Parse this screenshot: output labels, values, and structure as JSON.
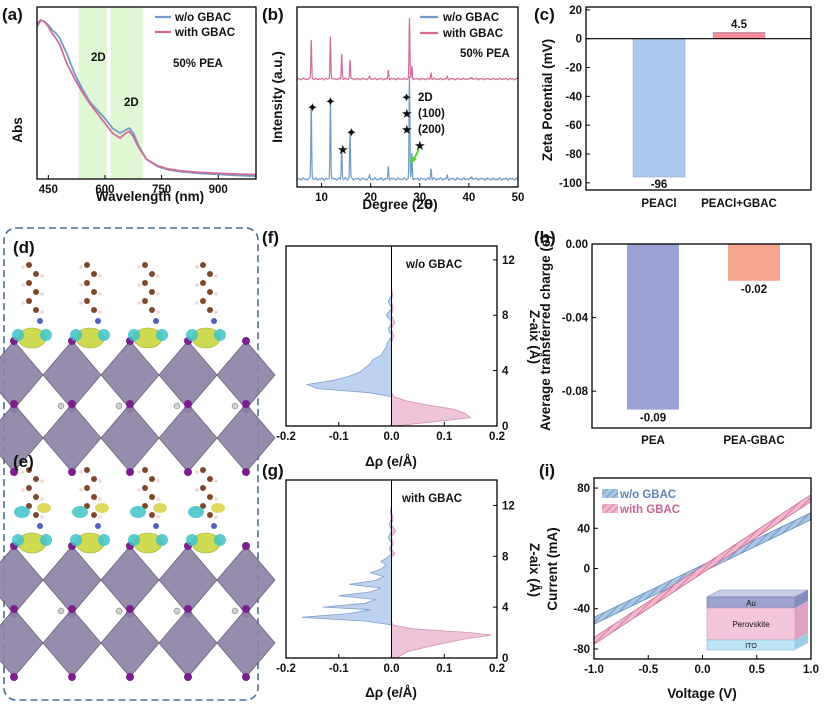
{
  "panels": {
    "a": "(a)",
    "b": "(b)",
    "c": "(c)",
    "d": "(d)",
    "e": "(e)",
    "f": "(f)",
    "g": "(g)",
    "h": "(h)",
    "i": "(i)"
  },
  "colors": {
    "wo": "#6f9cc4",
    "with": "#d36b97",
    "barA": "#adc8ef",
    "barB": "#f38c97",
    "barC": "#9aa2d6",
    "barD": "#f6a591",
    "neg": "#bcd2ef",
    "pos": "#efc3d8",
    "shade": "#dff7d2"
  },
  "chart_data": [
    {
      "id": "a",
      "type": "line",
      "xlabel": "Wavelength (nm)",
      "ylabel": "Abs",
      "xlim": [
        420,
        1000
      ],
      "xticks": [
        450,
        600,
        750,
        900
      ],
      "legend": [
        "w/o GBAC",
        "with GBAC"
      ],
      "legend_position": "top-right",
      "annotations": [
        "2D",
        "2D",
        "50% PEA"
      ],
      "shaded_regions": [
        [
          530,
          605
        ],
        [
          615,
          700
        ]
      ],
      "series": [
        {
          "name": "w/o GBAC",
          "x": [
            420,
            430,
            440,
            450,
            460,
            470,
            480,
            500,
            520,
            540,
            560,
            580,
            600,
            620,
            640,
            655,
            665,
            675,
            690,
            710,
            740,
            770,
            800,
            850,
            900,
            950,
            1000
          ],
          "y": [
            0.95,
            0.97,
            0.96,
            0.94,
            0.91,
            0.89,
            0.86,
            0.76,
            0.64,
            0.55,
            0.47,
            0.42,
            0.37,
            0.31,
            0.28,
            0.3,
            0.31,
            0.28,
            0.2,
            0.12,
            0.075,
            0.055,
            0.045,
            0.035,
            0.028,
            0.022,
            0.018
          ]
        },
        {
          "name": "with GBAC",
          "x": [
            420,
            430,
            440,
            450,
            460,
            470,
            480,
            500,
            520,
            540,
            560,
            580,
            600,
            620,
            640,
            655,
            665,
            675,
            690,
            710,
            740,
            770,
            800,
            850,
            900,
            950,
            1000
          ],
          "y": [
            0.93,
            0.97,
            0.96,
            0.93,
            0.89,
            0.86,
            0.82,
            0.7,
            0.61,
            0.53,
            0.46,
            0.4,
            0.34,
            0.28,
            0.25,
            0.28,
            0.29,
            0.26,
            0.19,
            0.12,
            0.08,
            0.06,
            0.05,
            0.04,
            0.035,
            0.03,
            0.027
          ]
        }
      ]
    },
    {
      "id": "b",
      "type": "line",
      "xlabel": "Degree (2θ)",
      "xlabel_parts": [
        "Degree (2",
        "θ",
        ")"
      ],
      "ylabel": "Intensity (a.u.)",
      "xlim": [
        5,
        50
      ],
      "xticks": [
        10,
        20,
        30,
        40,
        50
      ],
      "legend": [
        "w/o GBAC",
        "with GBAC"
      ],
      "legend_position": "top-right",
      "annotations": [
        "50% PEA"
      ],
      "marker_legend": [
        "2D",
        "(100)",
        "(200)"
      ],
      "peaks_wo_GBAC": [
        [
          7.9,
          0.72
        ],
        [
          11.8,
          0.8
        ],
        [
          14.1,
          0.28
        ],
        [
          15.8,
          0.45
        ],
        [
          19.8,
          0.04
        ],
        [
          23.6,
          0.12
        ],
        [
          27.9,
          1.0
        ],
        [
          28.4,
          0.25
        ],
        [
          32.3,
          0.1
        ],
        [
          35.6,
          0.03
        ],
        [
          40.6,
          0.03
        ]
      ],
      "peaks_with_GBAC": [
        [
          7.9,
          0.55
        ],
        [
          11.8,
          0.6
        ],
        [
          14.1,
          0.35
        ],
        [
          15.8,
          0.27
        ],
        [
          19.8,
          0.04
        ],
        [
          23.6,
          0.12
        ],
        [
          27.9,
          0.85
        ],
        [
          28.4,
          0.18
        ],
        [
          32.3,
          0.08
        ],
        [
          35.6,
          0.03
        ],
        [
          40.6,
          0.03
        ]
      ]
    },
    {
      "id": "c",
      "type": "bar",
      "ylabel": "Zeta Potential (mV)",
      "ylim": [
        -105,
        22
      ],
      "yticks": [
        20,
        0,
        -20,
        -40,
        -60,
        -80,
        -100
      ],
      "categories": [
        "PEACl",
        "PEACl+GBAC"
      ],
      "values": [
        -96,
        4.5
      ],
      "value_labels": [
        "-96",
        "4.5"
      ]
    },
    {
      "id": "f",
      "type": "area",
      "xlabel": "Δρ  (e/Å)",
      "ylabel": "Z-aix (Å)",
      "legend": "w/o GBAC",
      "xlim": [
        -0.2,
        0.2
      ],
      "xticks": [
        -0.2,
        -0.1,
        0.0,
        0.1,
        0.2
      ],
      "xtick_labels": [
        "-0.2",
        "-0.1",
        "0.0",
        "0.1",
        "0.2"
      ],
      "ylim": [
        0,
        13
      ],
      "yticks": [
        0,
        4,
        8,
        12
      ],
      "z": [
        0,
        0.3,
        0.6,
        0.9,
        1.2,
        1.5,
        1.8,
        2.1,
        2.4,
        2.7,
        3.0,
        3.3,
        3.6,
        3.9,
        4.2,
        4.5,
        4.8,
        5.1,
        5.4,
        5.7,
        6,
        6.5,
        7,
        7.5,
        8,
        8.5,
        9,
        9.5,
        10,
        10.5,
        11,
        11.5,
        12,
        12.5,
        13
      ],
      "drho": [
        0.005,
        0.08,
        0.15,
        0.14,
        0.12,
        0.07,
        0.03,
        0.005,
        -0.04,
        -0.14,
        -0.16,
        -0.11,
        -0.08,
        -0.06,
        -0.05,
        -0.04,
        -0.035,
        -0.02,
        -0.015,
        -0.01,
        -0.008,
        0.004,
        -0.006,
        0.006,
        -0.01,
        0.003,
        -0.006,
        0.002,
        0.0,
        0.0,
        0.0,
        0.0,
        0.0,
        0.0,
        0.0
      ]
    },
    {
      "id": "g",
      "type": "area",
      "xlabel": "Δρ  (e/Å)",
      "ylabel": "Z-aix (Å)",
      "legend": "with GBAC",
      "xlim": [
        -0.2,
        0.2
      ],
      "xticks": [
        -0.2,
        -0.1,
        0.0,
        0.1,
        0.2
      ],
      "xtick_labels": [
        "-0.2",
        "-0.1",
        "0.0",
        "0.1",
        "0.2"
      ],
      "ylim": [
        0,
        14
      ],
      "yticks": [
        0,
        4,
        8,
        12
      ],
      "z": [
        0,
        0.5,
        1.0,
        1.5,
        1.8,
        2.0,
        2.3,
        2.6,
        2.9,
        3.2,
        3.5,
        3.8,
        4.0,
        4.3,
        4.6,
        4.9,
        5.2,
        5.5,
        5.8,
        6.1,
        6.4,
        6.7,
        7.0,
        7.3,
        7.6,
        7.9,
        8.2,
        8.6,
        9.0,
        9.5,
        10,
        10.5,
        11,
        11.5,
        12,
        12.5,
        13,
        14
      ],
      "drho": [
        0.01,
        0.03,
        0.08,
        0.14,
        0.19,
        0.15,
        0.04,
        0.002,
        -0.05,
        -0.17,
        -0.08,
        -0.04,
        -0.13,
        -0.05,
        -0.03,
        -0.1,
        -0.04,
        -0.02,
        -0.08,
        -0.03,
        -0.015,
        -0.04,
        -0.02,
        -0.01,
        -0.02,
        -0.008,
        0.006,
        -0.004,
        0.003,
        -0.006,
        0.008,
        -0.004,
        0.003,
        -0.002,
        0.0,
        0.0,
        0.0,
        0.0
      ]
    },
    {
      "id": "h",
      "type": "bar",
      "ylabel": "Average transferred charge (e)",
      "ylim": [
        -0.1,
        0.0
      ],
      "yticks": [
        0.0,
        -0.04,
        -0.08
      ],
      "ytick_labels": [
        "0.00",
        "-0.04",
        "-0.08"
      ],
      "categories": [
        "PEA",
        "PEA-GBAC"
      ],
      "values": [
        -0.09,
        -0.02
      ],
      "value_labels": [
        "-0.09",
        "-0.02"
      ]
    },
    {
      "id": "i",
      "type": "line",
      "xlabel": "Voltage (V)",
      "ylabel": "Current (mA)",
      "xlim": [
        -1.0,
        1.0
      ],
      "xticks": [
        -1.0,
        -0.5,
        0.0,
        0.5,
        1.0
      ],
      "xtick_labels": [
        "-1.0",
        "-0.5",
        "0.0",
        "0.5",
        "1.0"
      ],
      "ylim": [
        -90,
        90
      ],
      "yticks": [
        -80,
        -40,
        0,
        40,
        80
      ],
      "legend": [
        "w/o GBAC",
        "with GBAC"
      ],
      "legend_position": "top-left",
      "inset_layers": [
        "Au",
        "Perovskite",
        "ITO"
      ],
      "series": [
        {
          "name": "w/o GBAC",
          "x": [
            -1.0,
            1.0
          ],
          "y": [
            -52,
            52
          ]
        },
        {
          "name": "with GBAC",
          "x": [
            -1.0,
            1.0
          ],
          "y": [
            -72,
            70
          ]
        }
      ]
    }
  ]
}
